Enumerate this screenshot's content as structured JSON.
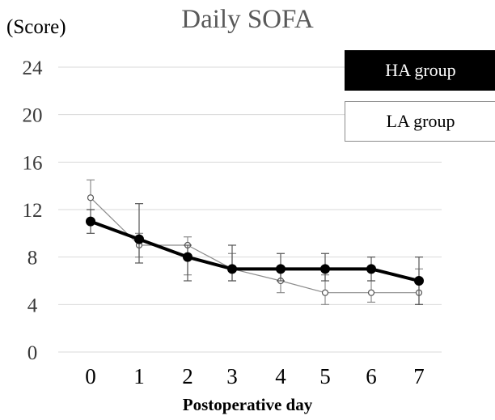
{
  "chart_data": {
    "type": "line",
    "title": "Daily SOFA",
    "ylabel": "(Score)",
    "xlabel": "Postoperative day",
    "x": [
      0,
      1,
      2,
      3,
      4,
      5,
      6,
      7
    ],
    "ylim": [
      0,
      24
    ],
    "yticks": [
      0,
      4,
      8,
      12,
      16,
      20,
      24
    ],
    "grid": true,
    "legend_position": "top-right",
    "series": [
      {
        "name": "HA group",
        "color": "#000000",
        "marker": "filled-circle",
        "values": [
          11,
          9.5,
          8,
          7,
          7,
          7,
          7,
          6
        ],
        "error_low": [
          10,
          7.5,
          6,
          6,
          6,
          6,
          6,
          4
        ],
        "error_high": [
          12,
          12.5,
          9,
          9,
          8.3,
          8.3,
          8,
          8
        ]
      },
      {
        "name": "LA group",
        "color": "#8c8c8c",
        "marker": "open-circle",
        "values": [
          13,
          9,
          9,
          7,
          6,
          5,
          5,
          5
        ],
        "error_low": [
          12,
          8,
          6.5,
          6,
          5,
          4,
          4.2,
          4
        ],
        "error_high": [
          14.5,
          10,
          9.7,
          8.3,
          7,
          6.5,
          6,
          7
        ]
      }
    ]
  }
}
